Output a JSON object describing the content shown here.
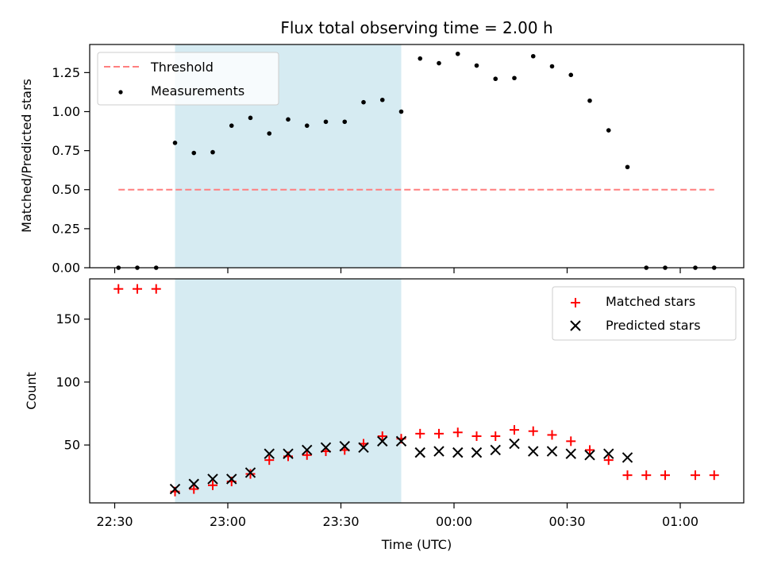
{
  "title": "Flux total observing time = 2.00 h",
  "colors": {
    "shade": "#add8e6",
    "threshold": "#ff7f7f",
    "measurements": "#000000",
    "matched": "#ff0000",
    "predicted": "#000000"
  },
  "chart_data": [
    {
      "type": "scatter",
      "ylabel": "Matched/Predicted stars",
      "ylim": [
        0,
        1.43
      ],
      "yticks": [
        "0.00",
        "0.25",
        "0.50",
        "0.75",
        "1.00",
        "1.25"
      ],
      "ytick_values": [
        0,
        0.25,
        0.5,
        0.75,
        1.0,
        1.25
      ],
      "shaded_interval": [
        "22:46",
        "23:46"
      ],
      "legend": {
        "placement": "top-left",
        "entries": [
          "Threshold",
          "Measurements"
        ]
      },
      "series": [
        {
          "name": "Threshold",
          "style": "dashed-line",
          "x": [
            "22:31",
            "01:09"
          ],
          "y": [
            0.5,
            0.5
          ]
        },
        {
          "name": "Measurements",
          "style": "dot",
          "x": [
            "22:31",
            "22:36",
            "22:41",
            "22:46",
            "22:51",
            "22:56",
            "23:01",
            "23:06",
            "23:11",
            "23:16",
            "23:21",
            "23:26",
            "23:31",
            "23:36",
            "23:41",
            "23:46",
            "23:51",
            "23:56",
            "00:01",
            "00:06",
            "00:11",
            "00:16",
            "00:21",
            "00:26",
            "00:31",
            "00:36",
            "00:41",
            "00:46",
            "00:51",
            "00:56",
            "01:04",
            "01:09"
          ],
          "y": [
            0,
            0,
            0,
            0.8,
            0.735,
            0.74,
            0.91,
            0.96,
            0.86,
            0.95,
            0.91,
            0.935,
            0.935,
            1.06,
            1.075,
            1.0,
            1.34,
            1.31,
            1.37,
            1.295,
            1.21,
            1.215,
            1.355,
            1.29,
            1.235,
            1.07,
            0.88,
            0.645,
            0,
            0,
            0,
            0
          ]
        }
      ]
    },
    {
      "type": "scatter",
      "xlabel": "Time (UTC)",
      "ylabel": "Count",
      "ylim": [
        4,
        182
      ],
      "yticks": [
        "50",
        "100",
        "150"
      ],
      "ytick_values": [
        50,
        100,
        150
      ],
      "xticks": [
        "22:30",
        "23:00",
        "23:30",
        "00:00",
        "00:30",
        "01:00"
      ],
      "shaded_interval": [
        "22:46",
        "23:46"
      ],
      "legend": {
        "placement": "top-right",
        "entries": [
          "Matched stars",
          "Predicted stars"
        ]
      },
      "series": [
        {
          "name": "Matched stars",
          "marker": "+",
          "x": [
            "22:31",
            "22:36",
            "22:41",
            "22:46",
            "22:51",
            "22:56",
            "23:01",
            "23:06",
            "23:11",
            "23:16",
            "23:21",
            "23:26",
            "23:31",
            "23:36",
            "23:41",
            "23:46",
            "23:51",
            "23:56",
            "00:01",
            "00:06",
            "00:11",
            "00:16",
            "00:21",
            "00:26",
            "00:31",
            "00:36",
            "00:41",
            "00:46",
            "00:51",
            "00:56",
            "01:04",
            "01:09"
          ],
          "y": [
            174,
            174,
            174,
            13,
            15,
            18,
            21,
            27,
            38,
            41,
            42,
            45,
            46,
            51,
            57,
            55,
            59,
            59,
            60,
            57,
            57,
            62,
            61,
            58,
            53,
            46,
            38,
            26,
            26,
            26,
            26,
            26
          ]
        },
        {
          "name": "Predicted stars",
          "marker": "x",
          "x": [
            "22:46",
            "22:51",
            "22:56",
            "23:01",
            "23:06",
            "23:11",
            "23:16",
            "23:21",
            "23:26",
            "23:31",
            "23:36",
            "23:41",
            "23:46",
            "23:51",
            "23:56",
            "00:01",
            "00:06",
            "00:11",
            "00:16",
            "00:21",
            "00:26",
            "00:31",
            "00:36",
            "00:41",
            "00:46"
          ],
          "y": [
            15,
            19,
            23,
            23,
            28,
            43,
            43,
            46,
            48,
            49,
            48,
            53,
            53,
            44,
            45,
            44,
            44,
            46,
            51,
            45,
            45,
            43,
            42,
            43,
            40
          ]
        }
      ]
    }
  ]
}
